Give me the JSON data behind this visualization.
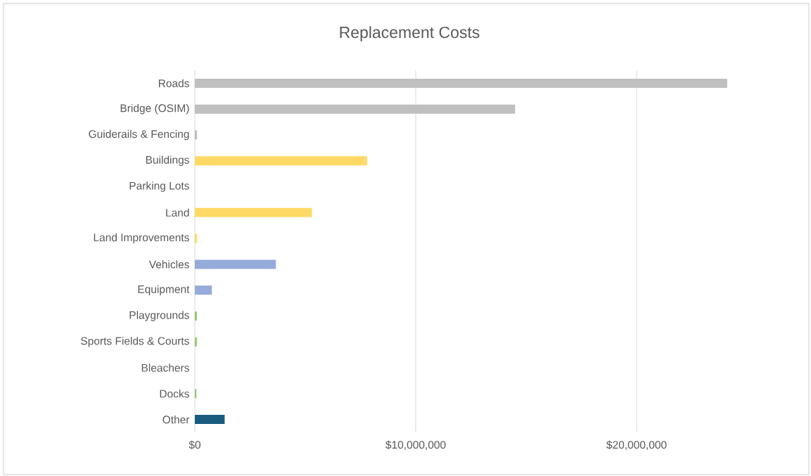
{
  "chart_data": {
    "type": "bar",
    "orientation": "horizontal",
    "title": "Replacement Costs",
    "categories": [
      "Roads",
      "Bridge (OSIM)",
      "Guiderails & Fencing",
      "Buildings",
      "Parking Lots",
      "Land",
      "Land Improvements",
      "Vehicles",
      "Equipment",
      "Playgrounds",
      "Sports Fields & Courts",
      "Bleachers",
      "Docks",
      "Other"
    ],
    "values": [
      24100000,
      14500000,
      100000,
      7800000,
      0,
      5300000,
      100000,
      3670000,
      770000,
      90000,
      90000,
      0,
      70000,
      1350000
    ],
    "colors": [
      "#bfbfbf",
      "#bfbfbf",
      "#bfbfbf",
      "#ffd966",
      "#ffd966",
      "#ffd966",
      "#ffd966",
      "#95abd9",
      "#95abd9",
      "#8fca6a",
      "#8fca6a",
      "#8fca6a",
      "#8fca6a",
      "#1a5c80"
    ],
    "xlim": [
      0,
      27800000
    ],
    "xticks": [
      {
        "value": 0,
        "label": "$0"
      },
      {
        "value": 10000000,
        "label": "$10,000,000"
      },
      {
        "value": 20000000,
        "label": "$20,000,000"
      }
    ],
    "grid": "x"
  }
}
